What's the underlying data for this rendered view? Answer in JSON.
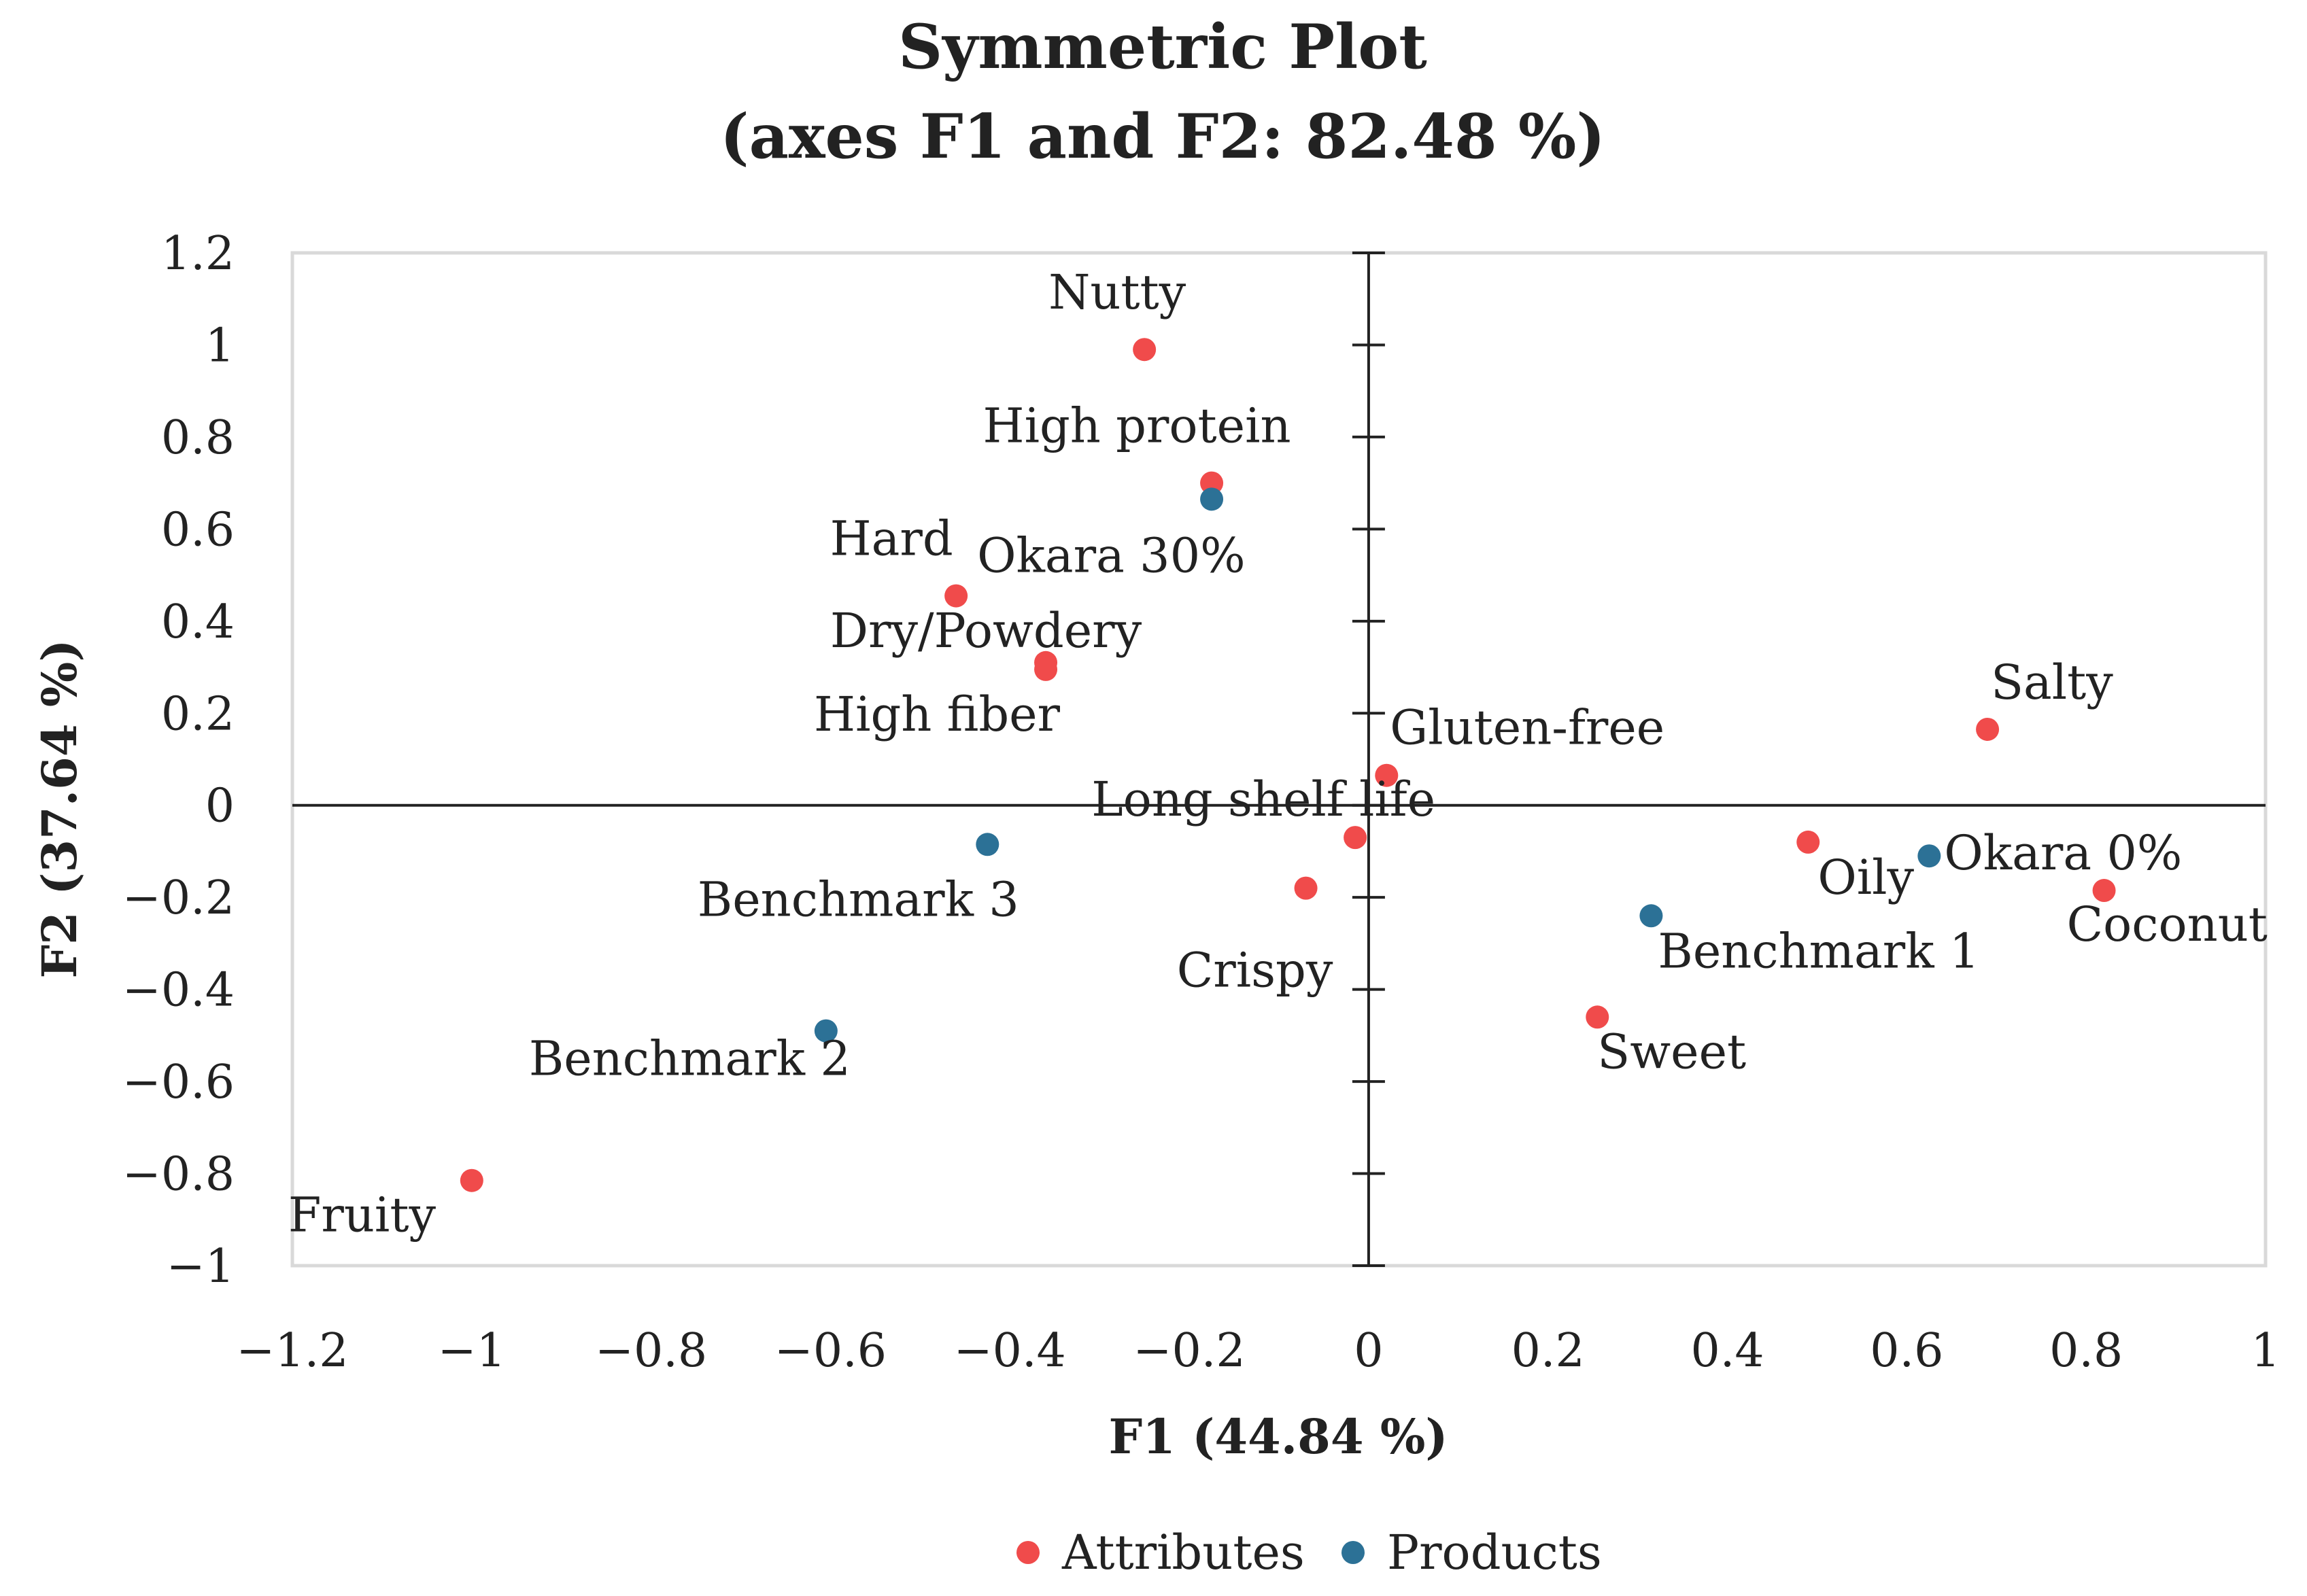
{
  "chart_data": {
    "type": "scatter",
    "title": "Symmetric Plot",
    "subtitle": "(axes F1 and F2: 82.48 %)",
    "xlabel": "F1 (44.84 %)",
    "ylabel": "F2 (37.64 %)",
    "xlim": [
      -1.2,
      1.0
    ],
    "ylim": [
      -1.0,
      1.2
    ],
    "x_ticks": [
      -1.2,
      -1,
      -0.8,
      -0.6,
      -0.4,
      -0.2,
      0,
      0.2,
      0.4,
      0.6,
      0.8,
      1
    ],
    "x_tick_labels": [
      "−1.2",
      "−1",
      "−0.8",
      "−0.6",
      "−0.4",
      "−0.2",
      "0",
      "0.2",
      "0.4",
      "0.6",
      "0.8",
      "1"
    ],
    "y_ticks": [
      1.2,
      1,
      0.8,
      0.6,
      0.4,
      0.2,
      0,
      -0.2,
      -0.4,
      -0.6,
      -0.8,
      -1
    ],
    "y_tick_labels": [
      "1.2",
      "1",
      "0.8",
      "0.6",
      "0.4",
      "0.2",
      "0",
      "−0.2",
      "−0.4",
      "−0.6",
      "−0.8",
      "−1"
    ],
    "legend_position": "bottom",
    "series": [
      {
        "name": "Attributes",
        "color": "#f04b4b",
        "points": [
          {
            "label": "Nutty",
            "x": -0.25,
            "y": 0.99
          },
          {
            "label": "High protein",
            "x": -0.175,
            "y": 0.7
          },
          {
            "label": "Hard",
            "x": -0.46,
            "y": 0.455
          },
          {
            "label": "Dry/Powdery",
            "x": -0.36,
            "y": 0.31
          },
          {
            "label": "High fiber",
            "x": -0.36,
            "y": 0.295
          },
          {
            "label": "Gluten-free",
            "x": 0.02,
            "y": 0.065
          },
          {
            "label": "Long shelf life",
            "x": -0.015,
            "y": -0.07
          },
          {
            "label": "Crispy",
            "x": -0.07,
            "y": -0.18
          },
          {
            "label": "Salty",
            "x": 0.69,
            "y": 0.165
          },
          {
            "label": "Oily",
            "x": 0.49,
            "y": -0.08
          },
          {
            "label": "Coconut",
            "x": 0.82,
            "y": -0.185
          },
          {
            "label": "Sweet",
            "x": 0.255,
            "y": -0.46
          },
          {
            "label": "Fruity",
            "x": -1.0,
            "y": -0.815
          }
        ]
      },
      {
        "name": "Products",
        "color": "#2c7196",
        "points": [
          {
            "label": "Okara 30%",
            "x": -0.175,
            "y": 0.665
          },
          {
            "label": "Benchmark 3",
            "x": -0.425,
            "y": -0.085
          },
          {
            "label": "Benchmark 2",
            "x": -0.605,
            "y": -0.49
          },
          {
            "label": "Okara 0%",
            "x": 0.625,
            "y": -0.11
          },
          {
            "label": "Benchmark 1",
            "x": 0.315,
            "y": -0.24
          }
        ]
      }
    ]
  }
}
